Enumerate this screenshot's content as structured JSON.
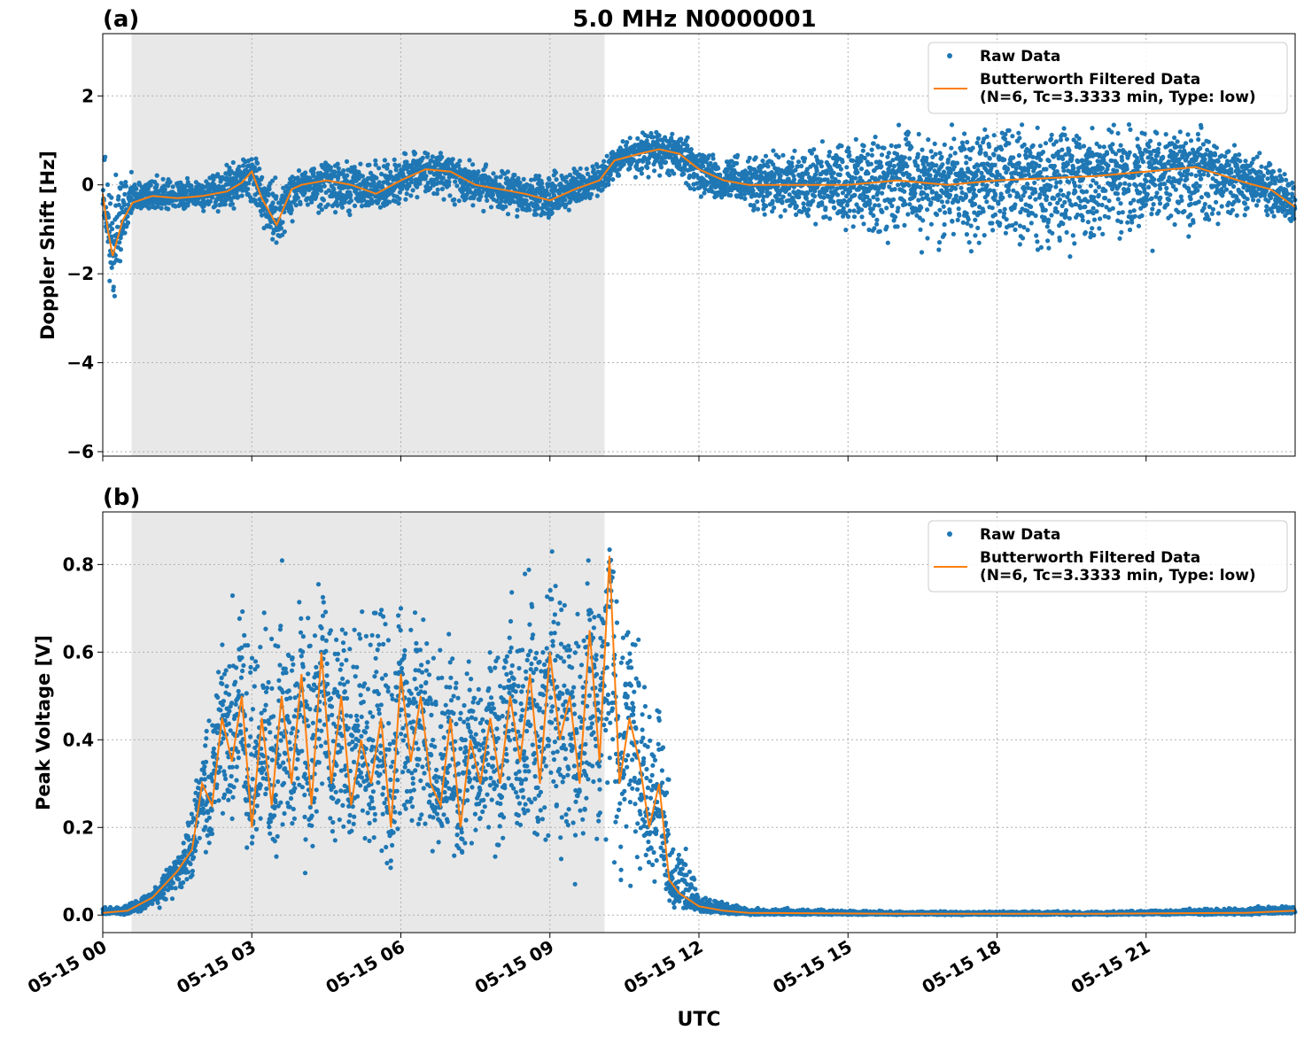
{
  "figure": {
    "title": "5.0 MHz N0000001",
    "xlabel": "UTC",
    "colors": {
      "raw": "#1f77b4",
      "filtered": "#ff7f0e",
      "shade": "#e8e8e8",
      "grid": "#b0b0b0"
    }
  },
  "chart_data": [
    {
      "type": "scatter",
      "panel_label": "(a)",
      "ylabel": "Doppler Shift [Hz]",
      "xlim": [
        0,
        24
      ],
      "ylim": [
        -6.1,
        3.4
      ],
      "yticks": [
        2,
        0,
        -2,
        -4,
        -6
      ],
      "ytick_labels": [
        "2",
        "0",
        "−2",
        "−4",
        "−6"
      ],
      "grid": true,
      "legend_position": "top-right",
      "shaded_x_range": [
        0.58,
        10.1
      ],
      "series": [
        {
          "name": "Raw Data",
          "kind": "scatter",
          "envelope_x": [
            0,
            0.2,
            0.4,
            0.6,
            1,
            2,
            3,
            3.5,
            4,
            5,
            6,
            7,
            8,
            9,
            10,
            10.5,
            11,
            11.5,
            12,
            13,
            14,
            15,
            16,
            17,
            18,
            19,
            20,
            21,
            22,
            23,
            24
          ],
          "envelope_upper": [
            1.2,
            0.9,
            0.5,
            0.3,
            0.3,
            0.3,
            0.8,
            0.3,
            0.5,
            0.7,
            0.9,
            0.8,
            0.5,
            0.4,
            0.6,
            1.2,
            1.3,
            1.4,
            0.9,
            0.8,
            1.1,
            1.3,
            1.5,
            1.6,
            1.6,
            1.7,
            1.6,
            1.6,
            1.5,
            0.9,
            0.5
          ],
          "envelope_lower": [
            -0.6,
            -3.0,
            -1.5,
            -0.7,
            -0.6,
            -0.7,
            -0.7,
            -1.5,
            -0.6,
            -0.9,
            -0.5,
            -0.6,
            -0.7,
            -1.0,
            -0.3,
            0.1,
            0.1,
            0.0,
            -0.4,
            -0.7,
            -1.0,
            -1.3,
            -1.6,
            -1.7,
            -1.8,
            -1.9,
            -1.8,
            -1.7,
            -1.6,
            -1.0,
            -0.9
          ]
        },
        {
          "name": "Butterworth Filtered Data\n(N=6, Tc=3.3333 min, Type: low)",
          "kind": "line",
          "x": [
            0,
            0.1,
            0.2,
            0.3,
            0.4,
            0.6,
            1,
            1.5,
            2,
            2.5,
            2.8,
            3,
            3.2,
            3.5,
            3.8,
            4,
            4.5,
            5,
            5.5,
            6,
            6.5,
            7,
            7.5,
            8,
            8.5,
            9,
            9.5,
            10,
            10.3,
            10.8,
            11.2,
            11.6,
            12,
            12.5,
            13,
            14,
            15,
            16,
            17,
            18,
            19,
            20,
            21,
            22,
            23,
            23.5,
            24
          ],
          "y": [
            -0.2,
            -1.0,
            -1.6,
            -1.2,
            -0.8,
            -0.4,
            -0.25,
            -0.3,
            -0.25,
            -0.15,
            0.05,
            0.3,
            -0.3,
            -0.9,
            -0.1,
            0.0,
            0.1,
            0.0,
            -0.2,
            0.1,
            0.35,
            0.3,
            0.0,
            -0.1,
            -0.2,
            -0.35,
            -0.1,
            0.1,
            0.55,
            0.7,
            0.8,
            0.7,
            0.35,
            0.1,
            0.0,
            0.0,
            0.0,
            0.1,
            0.0,
            0.1,
            0.15,
            0.2,
            0.3,
            0.4,
            0.05,
            -0.1,
            -0.5
          ]
        }
      ]
    },
    {
      "type": "scatter",
      "panel_label": "(b)",
      "ylabel": "Peak Voltage [V]",
      "xlim": [
        0,
        24
      ],
      "ylim": [
        -0.04,
        0.92
      ],
      "yticks": [
        0.0,
        0.2,
        0.4,
        0.6,
        0.8
      ],
      "ytick_labels": [
        "0.0",
        "0.2",
        "0.4",
        "0.6",
        "0.8"
      ],
      "xticks": [
        0,
        3,
        6,
        9,
        12,
        15,
        18,
        21
      ],
      "xtick_labels": [
        "05-15 00",
        "05-15 03",
        "05-15 06",
        "05-15 09",
        "05-15 12",
        "05-15 15",
        "05-15 18",
        "05-15 21"
      ],
      "grid": true,
      "legend_position": "top-right",
      "shaded_x_range": [
        0.58,
        10.1
      ],
      "series": [
        {
          "name": "Raw Data",
          "kind": "scatter",
          "envelope_x": [
            0,
            0.5,
            1,
            1.5,
            2,
            2.5,
            3,
            3.5,
            4,
            4.5,
            5,
            5.5,
            6,
            6.5,
            7,
            7.5,
            8,
            8.5,
            9,
            9.5,
            10,
            10.5,
            11,
            11.5,
            12,
            13,
            16,
            20,
            23,
            24
          ],
          "envelope_upper": [
            0.02,
            0.03,
            0.06,
            0.15,
            0.4,
            0.82,
            0.75,
            0.85,
            0.8,
            0.87,
            0.8,
            0.86,
            0.8,
            0.78,
            0.75,
            0.6,
            0.82,
            0.85,
            0.86,
            0.85,
            0.88,
            0.8,
            0.7,
            0.3,
            0.05,
            0.02,
            0.01,
            0.01,
            0.02,
            0.03
          ],
          "envelope_lower": [
            0.0,
            0.0,
            0.01,
            0.03,
            0.1,
            0.12,
            0.12,
            0.1,
            0.08,
            0.1,
            0.1,
            0.08,
            0.1,
            0.12,
            0.07,
            0.09,
            0.12,
            0.1,
            0.08,
            0.05,
            0.05,
            0.03,
            0.02,
            0.01,
            0.0,
            0.0,
            0.0,
            0.0,
            0.0,
            0.0
          ]
        },
        {
          "name": "Butterworth Filtered Data\n(N=6, Tc=3.3333 min, Type: low)",
          "kind": "line",
          "x": [
            0,
            0.5,
            1,
            1.5,
            1.8,
            2,
            2.2,
            2.4,
            2.6,
            2.8,
            3.0,
            3.2,
            3.4,
            3.6,
            3.8,
            4.0,
            4.2,
            4.4,
            4.6,
            4.8,
            5.0,
            5.2,
            5.4,
            5.6,
            5.8,
            6.0,
            6.2,
            6.4,
            6.6,
            6.8,
            7.0,
            7.2,
            7.4,
            7.6,
            7.8,
            8.0,
            8.2,
            8.4,
            8.6,
            8.8,
            9.0,
            9.2,
            9.4,
            9.6,
            9.8,
            10.0,
            10.2,
            10.4,
            10.6,
            10.8,
            11.0,
            11.2,
            11.4,
            11.6,
            12,
            12.5,
            13,
            16,
            20,
            23,
            24
          ],
          "y": [
            0.005,
            0.01,
            0.04,
            0.1,
            0.15,
            0.3,
            0.25,
            0.45,
            0.35,
            0.5,
            0.2,
            0.45,
            0.25,
            0.5,
            0.3,
            0.55,
            0.25,
            0.6,
            0.3,
            0.5,
            0.25,
            0.4,
            0.3,
            0.45,
            0.2,
            0.55,
            0.35,
            0.5,
            0.3,
            0.25,
            0.45,
            0.2,
            0.4,
            0.3,
            0.45,
            0.3,
            0.5,
            0.35,
            0.55,
            0.3,
            0.6,
            0.4,
            0.5,
            0.3,
            0.65,
            0.35,
            0.82,
            0.3,
            0.45,
            0.35,
            0.2,
            0.3,
            0.08,
            0.05,
            0.02,
            0.01,
            0.005,
            0.003,
            0.003,
            0.005,
            0.01
          ]
        }
      ]
    }
  ]
}
